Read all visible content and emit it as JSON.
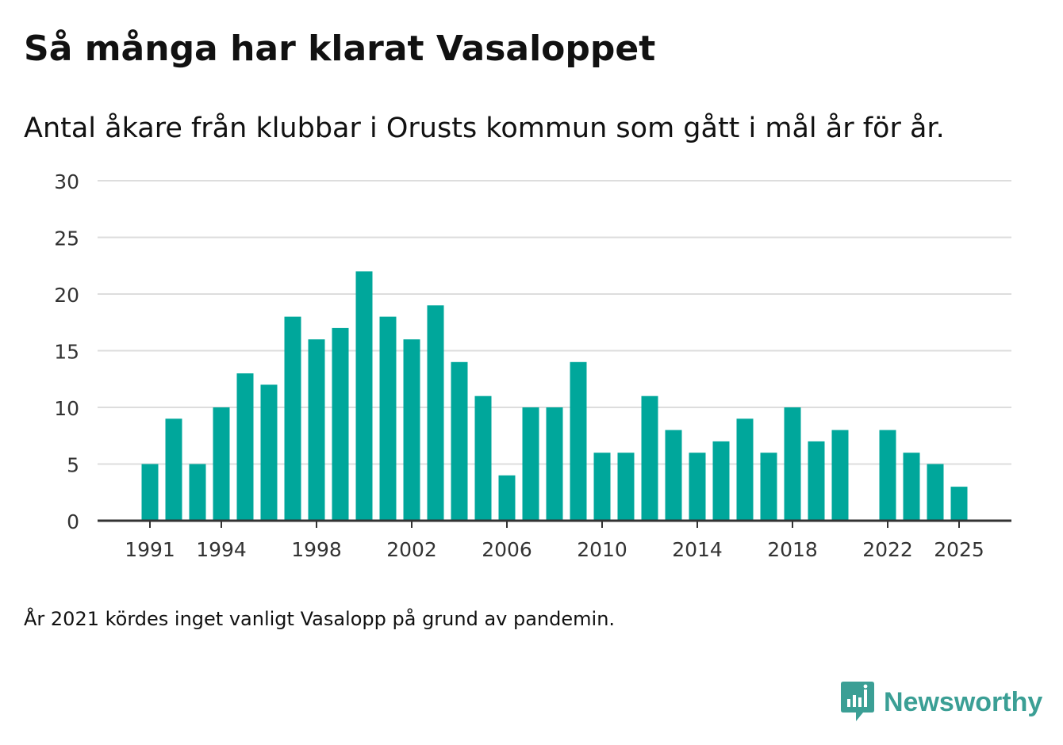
{
  "header": {
    "title": "Så många har klarat Vasaloppet",
    "subtitle": "Antal åkare från klubbar i Orusts kommun som gått i mål år för år."
  },
  "footer": {
    "note": "År 2021 kördes inget vanligt Vasalopp på grund av pandemin.",
    "brand": "Newsworthy",
    "brand_icon": "newsworthy-logo-icon"
  },
  "colors": {
    "bar": "#00a79b",
    "gridline": "#dddddd",
    "axis": "#333333",
    "text": "#111111",
    "tick_text": "#333333",
    "brand": "#3b9f95"
  },
  "chart_data": {
    "type": "bar",
    "title": "Så många har klarat Vasaloppet",
    "subtitle": "Antal åkare från klubbar i Orusts kommun som gått i mål år för år.",
    "xlabel": "",
    "ylabel": "",
    "ylim": [
      0,
      30
    ],
    "yticks": [
      0,
      5,
      10,
      15,
      20,
      25,
      30
    ],
    "xticks": [
      1991,
      1994,
      1998,
      2002,
      2006,
      2010,
      2014,
      2018,
      2022,
      2025
    ],
    "grid": true,
    "legend": "none",
    "categories": [
      1991,
      1992,
      1993,
      1994,
      1995,
      1996,
      1997,
      1998,
      1999,
      2000,
      2001,
      2002,
      2003,
      2004,
      2005,
      2006,
      2007,
      2008,
      2009,
      2010,
      2011,
      2012,
      2013,
      2014,
      2015,
      2016,
      2017,
      2018,
      2019,
      2020,
      2021,
      2022,
      2023,
      2024,
      2025
    ],
    "values": [
      5,
      9,
      5,
      10,
      13,
      12,
      18,
      16,
      17,
      22,
      18,
      16,
      19,
      14,
      11,
      4,
      10,
      10,
      14,
      6,
      6,
      11,
      8,
      6,
      7,
      9,
      6,
      10,
      7,
      8,
      null,
      8,
      6,
      5,
      3
    ]
  }
}
